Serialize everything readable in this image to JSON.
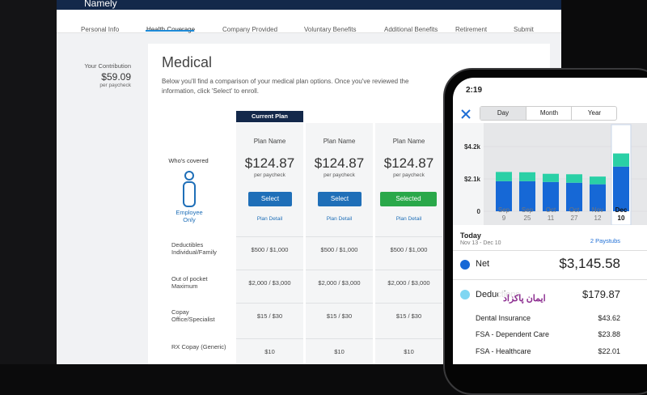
{
  "app": {
    "brand": "Namely",
    "tabs": [
      "Personal Info",
      "Health Coverage",
      "Company Provided",
      "Voluntary Benefits",
      "Additional Benefits",
      "Retirement",
      "Submit"
    ]
  },
  "contribution": {
    "label": "Your Contribution",
    "amount": "$59.09",
    "unit": "per paycheck"
  },
  "medical": {
    "title": "Medical",
    "description": "Below you'll find a comparison of your medical plan options. Once you've reviewed the information, click 'Select' to enroll.",
    "current_plan": "Current Plan",
    "whos_covered": "Who's covered",
    "coverage": "Employee Only",
    "row_labels": [
      "Deductibles Individual/Family",
      "Out of pocket Maximum",
      "Copay Office/Specialist",
      "RX Copay (Generic)"
    ],
    "plans": [
      {
        "name": "Plan Name",
        "price": "$124.87",
        "unit": "per paycheck",
        "button": "Select",
        "detail": "Plan Detail",
        "rows": [
          "$500 / $1,000",
          "$2,000 / $3,000",
          "$15 / $30",
          "$10"
        ]
      },
      {
        "name": "Plan Name",
        "price": "$124.87",
        "unit": "per paycheck",
        "button": "Select",
        "detail": "Plan Detail",
        "rows": [
          "$500 / $1,000",
          "$2,000 / $3,000",
          "$15 / $30",
          "$10"
        ]
      },
      {
        "name": "Plan Name",
        "price": "$124.87",
        "unit": "per paycheck",
        "button": "Selected",
        "detail": "Plan Detail",
        "rows": [
          "$500 / $1,000",
          "$2,000 / $3,000",
          "$15 / $30",
          "$10"
        ]
      }
    ]
  },
  "phone": {
    "time": "2:19",
    "tabs": [
      "Day",
      "Month",
      "Year"
    ],
    "chart": {
      "type": "bar",
      "stacked": true,
      "categories": [
        "Sep 9",
        "Sep 25",
        "Oct 11",
        "Oct 27",
        "Nov 12",
        "Dec 10"
      ],
      "series": [
        {
          "color": "#1668d6",
          "values": [
            1950,
            1950,
            1900,
            1850,
            1750,
            2900
          ]
        },
        {
          "color": "#2ad0a6",
          "values": [
            600,
            580,
            530,
            550,
            500,
            850
          ]
        }
      ],
      "ylim": [
        0,
        4200
      ],
      "yticks": [
        0,
        {
          "value": 2100,
          "label": "$2.1k"
        },
        {
          "value": 4200,
          "label": "$4.2k"
        }
      ]
    },
    "period": "Today",
    "range": "Nov 13 - Dec 10",
    "paystubs": "2 Paystubs",
    "net_label": "Net",
    "net": "$3,145.58",
    "deductions_label": "Deductions",
    "deductions": "$179.87",
    "items": [
      {
        "name": "Dental Insurance",
        "amount": "$43.62"
      },
      {
        "name": "FSA - Dependent Care",
        "amount": "$23.88"
      },
      {
        "name": "FSA - Healthcare",
        "amount": "$22.01"
      }
    ]
  },
  "watermark": "ایمان پاکزاد"
}
